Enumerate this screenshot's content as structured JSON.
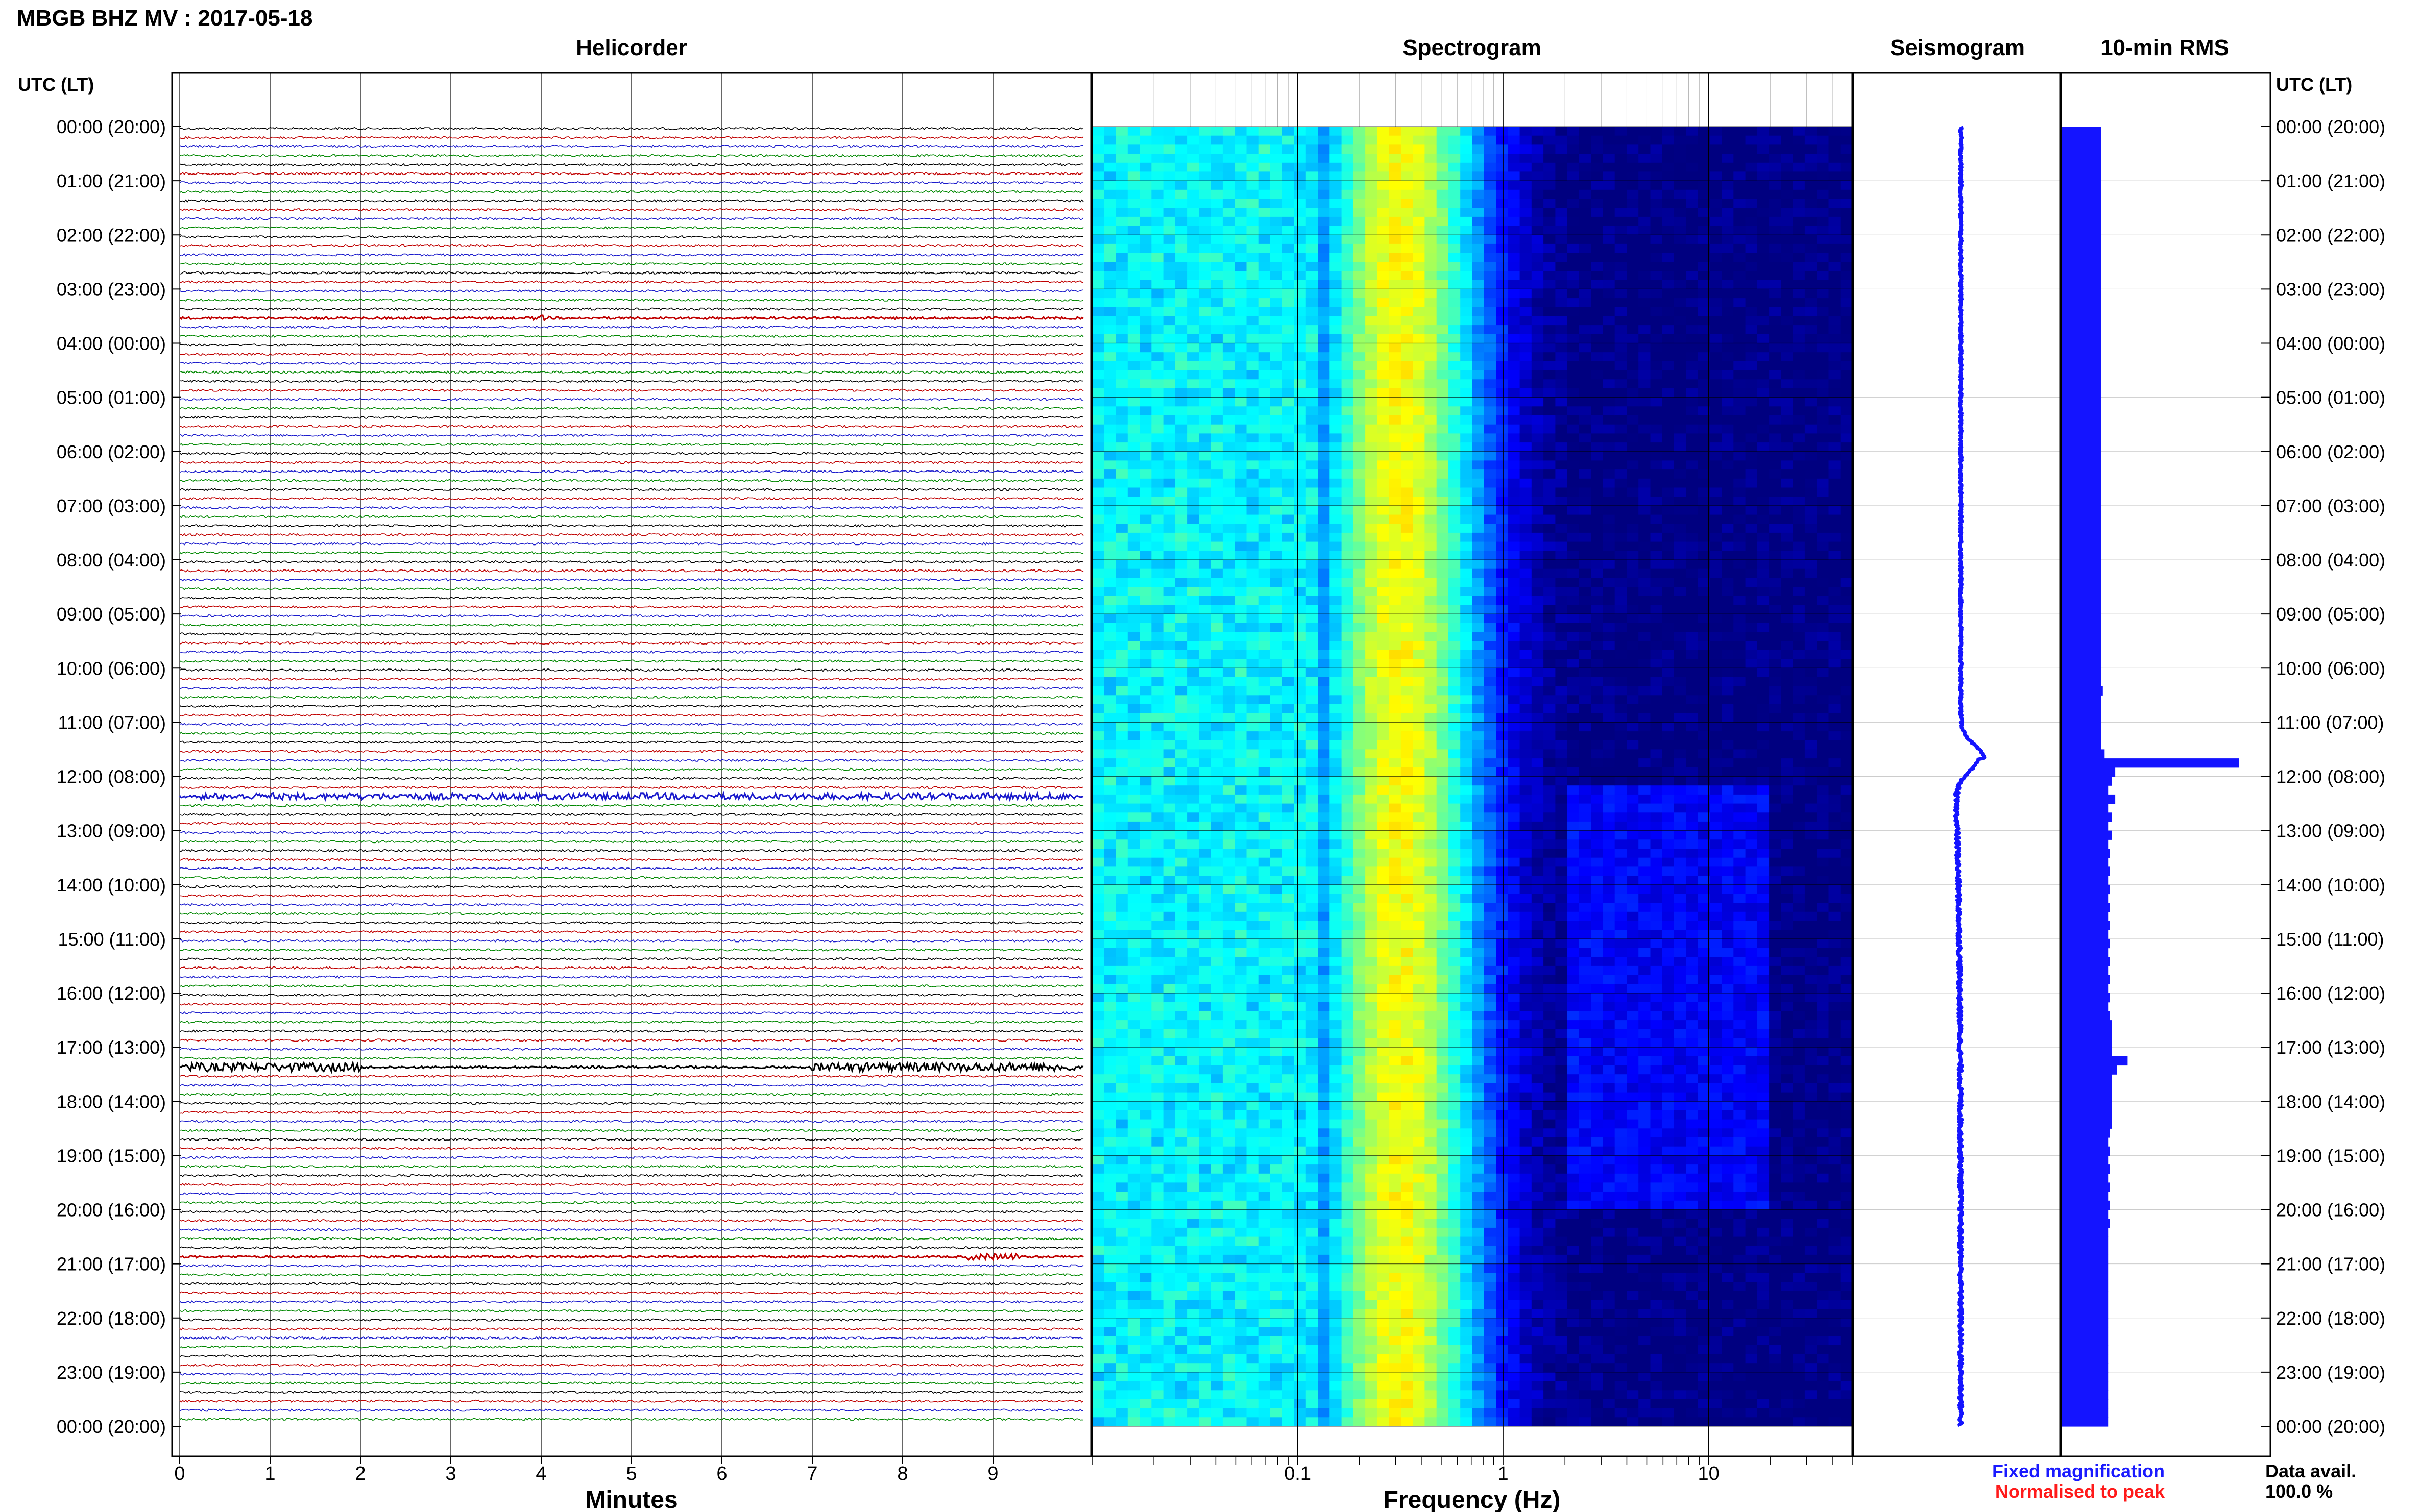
{
  "header": {
    "station_title": "MBGB BHZ MV : 2017-05-18",
    "utc_header_left": "UTC (LT)",
    "utc_header_right": "UTC (LT)"
  },
  "panels": {
    "helicorder_title": "Helicorder",
    "spectrogram_title": "Spectrogram",
    "seismogram_title": "Seismogram",
    "rms_title": "10-min RMS"
  },
  "footer": {
    "minutes_label": "Minutes",
    "frequency_label": "Frequency (Hz)",
    "fixed_magnification": "Fixed magnification",
    "normalised_to_peak": "Normalised to peak",
    "data_avail_label": "Data avail.",
    "data_avail_value": "100.0 %"
  },
  "colors": {
    "fixed_magnification": "#1a1aff",
    "normalised_to_peak": "#ff1a1a",
    "trace_colors": [
      "#000000",
      "#c00000",
      "#1a1acc",
      "#008800"
    ],
    "rms_bar": "#1414ff",
    "spectrogram_colormap": "jet"
  },
  "chart_data": [
    {
      "type": "line",
      "name": "helicorder",
      "title": "Helicorder",
      "xlabel": "Minutes",
      "x_ticks": [
        0,
        1,
        2,
        3,
        4,
        5,
        6,
        7,
        8,
        9
      ],
      "xlim": [
        0,
        10
      ],
      "y_tick_labels": [
        "00:00 (20:00)",
        "01:00 (21:00)",
        "02:00 (22:00)",
        "03:00 (23:00)",
        "04:00 (00:00)",
        "05:00 (01:00)",
        "06:00 (02:00)",
        "07:00 (03:00)",
        "08:00 (04:00)",
        "09:00 (05:00)",
        "10:00 (06:00)",
        "11:00 (07:00)",
        "12:00 (08:00)",
        "13:00 (09:00)",
        "14:00 (10:00)",
        "15:00 (11:00)",
        "16:00 (12:00)",
        "17:00 (13:00)",
        "18:00 (14:00)",
        "19:00 (15:00)",
        "20:00 (16:00)",
        "21:00 (17:00)",
        "22:00 (18:00)",
        "23:00 (19:00)",
        "00:00 (20:00)"
      ],
      "traces_per_hour": 6,
      "trace_count": 144,
      "events": [
        {
          "trace_index": 74,
          "minutes": [
            0.2,
            9.9
          ],
          "strength": 1.0
        },
        {
          "trace_index": 104,
          "minutes": [
            0.0,
            2.0
          ],
          "strength": 1.6
        },
        {
          "trace_index": 104,
          "minutes": [
            7.0,
            9.9
          ],
          "strength": 1.6
        },
        {
          "trace_index": 125,
          "minutes": [
            8.7,
            9.3
          ],
          "strength": 1.0
        },
        {
          "trace_index": 21,
          "minutes": [
            3.9,
            4.1
          ],
          "strength": 0.8
        }
      ]
    },
    {
      "type": "heatmap",
      "name": "spectrogram",
      "title": "Spectrogram",
      "xlabel": "Frequency (Hz)",
      "x_scale": "log",
      "xlim": [
        0.01,
        50
      ],
      "x_tick_labels": [
        {
          "value": 0.1,
          "label": "0.1"
        },
        {
          "value": 1,
          "label": "1"
        },
        {
          "value": 10,
          "label": "10"
        }
      ],
      "ylim_hours": [
        0,
        24
      ],
      "colormap": "jet",
      "spectral_peak_hz": [
        0.2,
        0.5
      ],
      "anthropogenic_band_hours": [
        12.2,
        20.0
      ],
      "anthropogenic_band_hz": [
        2,
        20
      ]
    },
    {
      "type": "line",
      "name": "seismogram",
      "title": "Seismogram",
      "ylim_hours": [
        0,
        24
      ],
      "color": "#1414ff",
      "baseline_level": 0.52,
      "peak": {
        "hour": 11.67,
        "level": 0.63
      }
    },
    {
      "type": "bar",
      "name": "rms",
      "title": "10-min RMS",
      "orientation": "horizontal",
      "bin_minutes": 10,
      "ylim_hours": [
        0,
        24
      ],
      "color": "#1414ff",
      "values_relative": [
        0.22,
        0.22,
        0.22,
        0.22,
        0.22,
        0.22,
        0.22,
        0.22,
        0.22,
        0.22,
        0.22,
        0.22,
        0.22,
        0.22,
        0.22,
        0.22,
        0.22,
        0.22,
        0.22,
        0.22,
        0.22,
        0.22,
        0.22,
        0.22,
        0.22,
        0.22,
        0.22,
        0.22,
        0.22,
        0.22,
        0.22,
        0.22,
        0.22,
        0.22,
        0.22,
        0.22,
        0.22,
        0.22,
        0.22,
        0.22,
        0.22,
        0.22,
        0.22,
        0.22,
        0.22,
        0.22,
        0.22,
        0.22,
        0.22,
        0.22,
        0.22,
        0.22,
        0.22,
        0.22,
        0.22,
        0.22,
        0.22,
        0.22,
        0.22,
        0.22,
        0.22,
        0.22,
        0.23,
        0.22,
        0.22,
        0.22,
        0.22,
        0.22,
        0.22,
        0.24,
        1.0,
        0.3,
        0.28,
        0.26,
        0.3,
        0.26,
        0.28,
        0.26,
        0.28,
        0.26,
        0.27,
        0.26,
        0.27,
        0.26,
        0.27,
        0.26,
        0.27,
        0.26,
        0.27,
        0.26,
        0.27,
        0.26,
        0.27,
        0.26,
        0.27,
        0.26,
        0.27,
        0.26,
        0.27,
        0.28,
        0.28,
        0.28,
        0.28,
        0.37,
        0.31,
        0.28,
        0.28,
        0.28,
        0.28,
        0.28,
        0.28,
        0.27,
        0.26,
        0.27,
        0.26,
        0.27,
        0.26,
        0.27,
        0.26,
        0.27,
        0.26,
        0.27,
        0.26,
        0.26,
        0.26,
        0.26,
        0.26,
        0.26,
        0.26,
        0.26,
        0.26,
        0.26,
        0.26,
        0.26,
        0.26,
        0.26,
        0.26,
        0.26,
        0.26,
        0.26,
        0.26,
        0.26,
        0.26,
        0.26
      ]
    }
  ]
}
